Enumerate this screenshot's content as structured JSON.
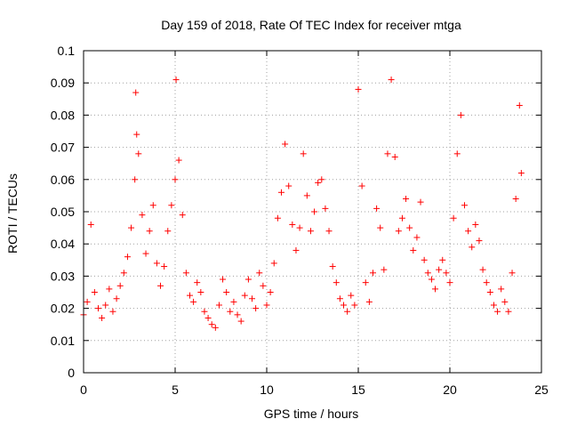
{
  "chart_data": {
    "type": "scatter",
    "title": "Day 159 of 2018, Rate Of TEC Index for receiver mtga",
    "xlabel": "GPS time / hours",
    "ylabel": "ROTI / TECUs",
    "xlim": [
      0,
      25
    ],
    "ylim": [
      0,
      0.1
    ],
    "x_ticks": [
      0,
      5,
      10,
      15,
      20,
      25
    ],
    "y_ticks": [
      0,
      0.01,
      0.02,
      0.03,
      0.04,
      0.05,
      0.06,
      0.07,
      0.08,
      0.09,
      0.1
    ],
    "x_tick_labels": [
      "0",
      "5",
      "10",
      "15",
      "20",
      "25"
    ],
    "y_tick_labels": [
      "0",
      "0.01",
      "0.02",
      "0.03",
      "0.04",
      "0.05",
      "0.06",
      "0.07",
      "0.08",
      "0.09",
      "0.1"
    ],
    "grid": true,
    "marker": "+",
    "marker_color": "#ff0000",
    "series": [
      {
        "name": "",
        "x": [
          0.0,
          0.2,
          0.4,
          0.6,
          0.8,
          1.0,
          1.2,
          1.4,
          1.6,
          1.8,
          2.0,
          2.2,
          2.4,
          2.6,
          2.8,
          2.85,
          2.9,
          3.0,
          3.2,
          3.4,
          3.6,
          3.8,
          4.0,
          4.2,
          4.4,
          4.6,
          4.8,
          5.0,
          5.05,
          5.2,
          5.4,
          5.6,
          5.8,
          6.0,
          6.2,
          6.4,
          6.6,
          6.8,
          7.0,
          7.2,
          7.4,
          7.6,
          7.8,
          8.0,
          8.2,
          8.4,
          8.6,
          8.8,
          9.0,
          9.2,
          9.4,
          9.6,
          9.8,
          10.0,
          10.2,
          10.4,
          10.6,
          10.8,
          11.0,
          11.2,
          11.4,
          11.6,
          11.8,
          12.0,
          12.2,
          12.4,
          12.6,
          12.8,
          13.0,
          13.2,
          13.4,
          13.6,
          13.8,
          14.0,
          14.2,
          14.4,
          14.6,
          14.8,
          15.0,
          15.2,
          15.4,
          15.6,
          15.8,
          16.0,
          16.2,
          16.4,
          16.6,
          16.8,
          17.0,
          17.2,
          17.4,
          17.6,
          17.8,
          18.0,
          18.2,
          18.4,
          18.6,
          18.8,
          19.0,
          19.2,
          19.4,
          19.6,
          19.8,
          20.0,
          20.2,
          20.4,
          20.6,
          20.8,
          21.0,
          21.2,
          21.4,
          21.6,
          21.8,
          22.0,
          22.2,
          22.4,
          22.6,
          22.8,
          23.0,
          23.2,
          23.4,
          23.6,
          23.8,
          23.9
        ],
        "y": [
          0.018,
          0.022,
          0.046,
          0.025,
          0.02,
          0.017,
          0.021,
          0.026,
          0.019,
          0.023,
          0.027,
          0.031,
          0.036,
          0.045,
          0.06,
          0.087,
          0.074,
          0.068,
          0.049,
          0.037,
          0.044,
          0.052,
          0.034,
          0.027,
          0.033,
          0.044,
          0.052,
          0.06,
          0.091,
          0.066,
          0.049,
          0.031,
          0.024,
          0.022,
          0.028,
          0.025,
          0.019,
          0.017,
          0.015,
          0.014,
          0.021,
          0.029,
          0.025,
          0.019,
          0.022,
          0.018,
          0.016,
          0.024,
          0.029,
          0.023,
          0.02,
          0.031,
          0.027,
          0.021,
          0.025,
          0.034,
          0.048,
          0.056,
          0.071,
          0.058,
          0.046,
          0.038,
          0.045,
          0.068,
          0.055,
          0.044,
          0.05,
          0.059,
          0.06,
          0.051,
          0.044,
          0.033,
          0.028,
          0.023,
          0.021,
          0.019,
          0.024,
          0.021,
          0.088,
          0.058,
          0.028,
          0.022,
          0.031,
          0.051,
          0.045,
          0.032,
          0.068,
          0.091,
          0.067,
          0.044,
          0.048,
          0.054,
          0.045,
          0.038,
          0.042,
          0.053,
          0.035,
          0.031,
          0.029,
          0.026,
          0.032,
          0.035,
          0.031,
          0.028,
          0.048,
          0.068,
          0.08,
          0.052,
          0.044,
          0.039,
          0.046,
          0.041,
          0.032,
          0.028,
          0.025,
          0.021,
          0.019,
          0.026,
          0.022,
          0.019,
          0.031,
          0.054,
          0.083,
          0.062
        ]
      }
    ]
  }
}
